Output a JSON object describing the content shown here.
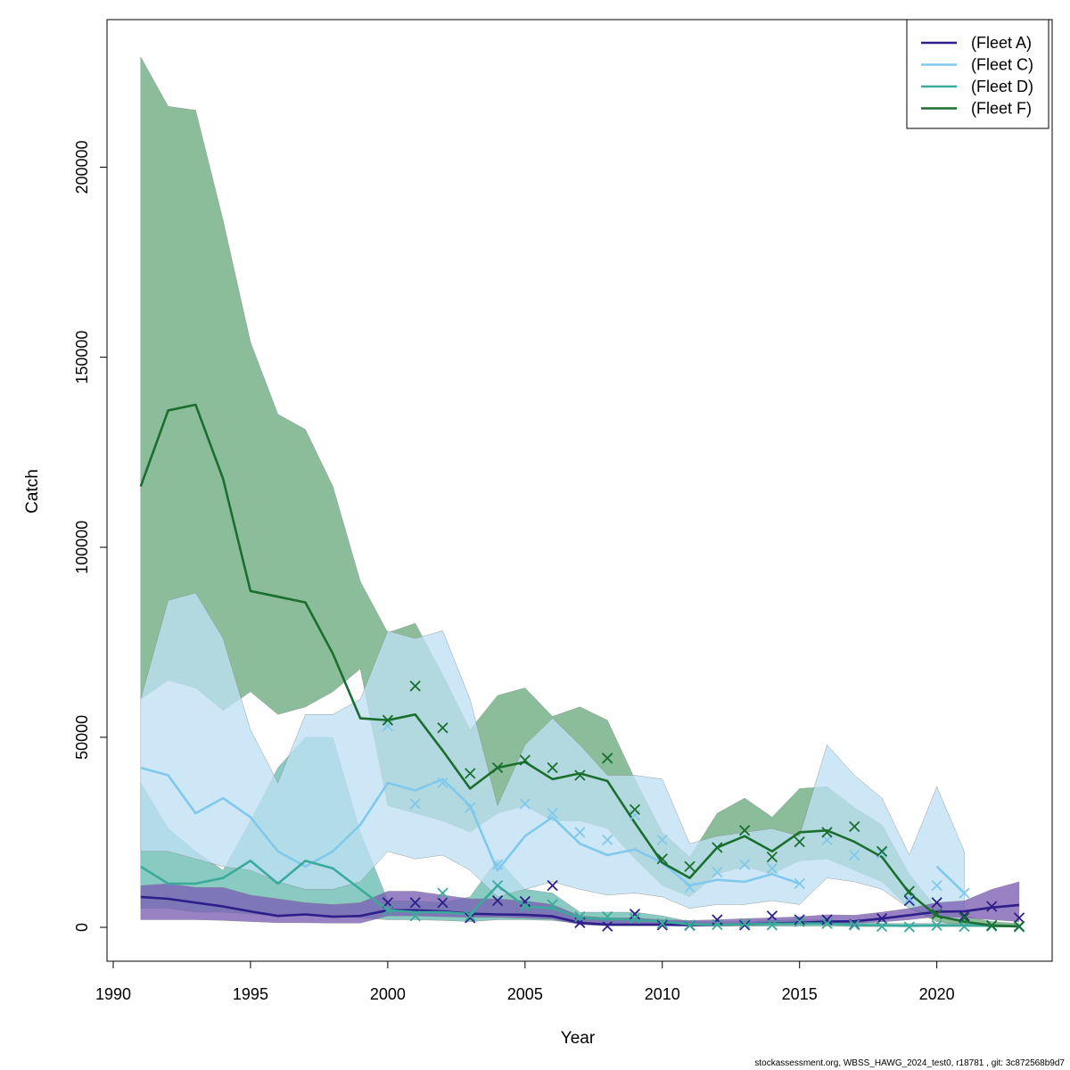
{
  "footer": "stockassessment.org, WBSS_HAWG_2024_test0, r18781 , git: 3c872568b9d7",
  "chart_data": {
    "type": "line",
    "xlabel": "Year",
    "ylabel": "Catch",
    "xlim": [
      1990,
      2023
    ],
    "ylim": [
      -10000,
      240000
    ],
    "xticks": [
      1990,
      1995,
      2000,
      2005,
      2010,
      2015,
      2020
    ],
    "yticks": [
      0,
      50000,
      100000,
      150000,
      200000
    ],
    "legend_position": "top-right",
    "grid": false,
    "x": [
      1991,
      1992,
      1993,
      1994,
      1995,
      1996,
      1997,
      1998,
      1999,
      2000,
      2001,
      2002,
      2003,
      2004,
      2005,
      2006,
      2007,
      2008,
      2009,
      2010,
      2011,
      2012,
      2013,
      2014,
      2015,
      2016,
      2017,
      2018,
      2019,
      2020,
      2021,
      2022,
      2023
    ],
    "series": [
      {
        "name": "(Fleet A)",
        "color": "#2d1e8a",
        "fill": "#7b5fb3",
        "estimate": [
          8000,
          7500,
          6500,
          5500,
          4200,
          3000,
          3400,
          2800,
          3000,
          4500,
          4500,
          4200,
          3600,
          3400,
          3300,
          2900,
          1200,
          700,
          700,
          700,
          600,
          700,
          800,
          1000,
          1200,
          1500,
          1600,
          2300,
          3200,
          4100,
          4200,
          5200,
          5900
        ],
        "lower": [
          2000,
          2000,
          2000,
          1800,
          1500,
          1200,
          1200,
          1100,
          1100,
          3000,
          3000,
          2800,
          2600,
          2600,
          2400,
          2100,
          700,
          400,
          400,
          400,
          300,
          400,
          500,
          600,
          700,
          900,
          1000,
          1400,
          2000,
          2800,
          2500,
          2000,
          1500
        ],
        "upper": [
          11000,
          11500,
          10500,
          10500,
          8500,
          7500,
          6500,
          6000,
          6500,
          9500,
          9500,
          8500,
          7500,
          7500,
          7000,
          6000,
          3000,
          2500,
          2500,
          2000,
          1800,
          2000,
          2300,
          2500,
          2800,
          3300,
          3200,
          4000,
          5000,
          6500,
          7000,
          10000,
          12000
        ],
        "observed": [
          null,
          null,
          null,
          null,
          null,
          null,
          null,
          null,
          null,
          6500,
          6500,
          6500,
          2500,
          7000,
          6800,
          11000,
          1200,
          300,
          3500,
          600,
          500,
          2000,
          600,
          3000,
          2000,
          2000,
          800,
          2300,
          7000,
          6500,
          3000,
          5500,
          2500
        ]
      },
      {
        "name": "(Fleet C)",
        "color": "#80c9ed",
        "fill": "#bfe0f3",
        "estimate": [
          42000,
          40000,
          30000,
          34000,
          29000,
          20000,
          16000,
          20000,
          27000,
          38000,
          36000,
          39000,
          32000,
          15000,
          24000,
          29000,
          22000,
          19000,
          20500,
          17000,
          11000,
          12500,
          12000,
          14000,
          11500,
          null,
          null,
          null,
          null,
          16000,
          9000,
          null,
          null
        ],
        "lower": [
          20000,
          20000,
          18000,
          16000,
          15000,
          12000,
          10000,
          10000,
          12000,
          20000,
          18000,
          19000,
          15000,
          8000,
          10000,
          12000,
          10000,
          8500,
          9000,
          8000,
          5000,
          6000,
          6000,
          7000,
          6000,
          13000,
          12000,
          10000,
          5000,
          3000,
          2000,
          null,
          null
        ],
        "upper": [
          60000,
          86000,
          88000,
          76000,
          52000,
          38000,
          56000,
          56000,
          60000,
          78000,
          76000,
          78000,
          60000,
          32000,
          48000,
          55000,
          48000,
          40000,
          40000,
          39000,
          22000,
          24000,
          25000,
          26000,
          24000,
          48000,
          40000,
          34000,
          19000,
          37000,
          20000,
          null,
          null
        ],
        "observed": [
          null,
          null,
          null,
          null,
          null,
          null,
          null,
          null,
          null,
          53000,
          32500,
          38000,
          31500,
          16500,
          32500,
          30000,
          25000,
          23000,
          29500,
          23000,
          10500,
          14500,
          16500,
          15500,
          11500,
          23000,
          19000,
          19500,
          7500,
          11000,
          9000,
          null,
          null
        ]
      },
      {
        "name": "(Fleet D)",
        "color": "#3aaa9a",
        "fill": "#68bcb2",
        "estimate": [
          16000,
          11500,
          11500,
          13000,
          17500,
          11500,
          17500,
          15500,
          10000,
          4500,
          4000,
          4000,
          3500,
          11000,
          5500,
          5000,
          2500,
          2200,
          2000,
          1500,
          800,
          700,
          800,
          900,
          1000,
          1000,
          600,
          500,
          400,
          500,
          500,
          400,
          300
        ],
        "lower": [
          5000,
          5000,
          4000,
          4000,
          3500,
          3000,
          3500,
          3000,
          2500,
          2000,
          2000,
          1800,
          1500,
          2000,
          2000,
          1800,
          1000,
          800,
          800,
          600,
          300,
          300,
          300,
          300,
          300,
          300,
          200,
          200,
          150,
          200,
          200,
          150,
          100
        ],
        "upper": [
          38000,
          26000,
          20000,
          15000,
          28000,
          42000,
          50000,
          50000,
          25000,
          7000,
          7000,
          6500,
          8000,
          18000,
          10000,
          9000,
          4000,
          4000,
          4000,
          3000,
          1500,
          1500,
          1500,
          1800,
          2000,
          2000,
          1500,
          1000,
          1000,
          1000,
          1000,
          800,
          600
        ],
        "observed": [
          null,
          null,
          null,
          null,
          null,
          null,
          null,
          null,
          null,
          4500,
          3000,
          9000,
          3000,
          11000,
          5500,
          6000,
          2800,
          2800,
          2300,
          1000,
          600,
          700,
          1000,
          600,
          1500,
          1000,
          600,
          200,
          100,
          500,
          200,
          300,
          100
        ]
      },
      {
        "name": "(Fleet F)",
        "color": "#1a6e2e",
        "fill": "#6aab7e",
        "estimate": [
          116000,
          136000,
          137500,
          118000,
          88500,
          87000,
          85500,
          72000,
          55000,
          54500,
          56000,
          46500,
          36500,
          42000,
          43500,
          39000,
          40500,
          38500,
          27500,
          17000,
          13000,
          21000,
          24000,
          20000,
          25000,
          25500,
          22500,
          18500,
          9000,
          3000,
          1500,
          500,
          200
        ],
        "lower": [
          60000,
          65000,
          63000,
          57000,
          62000,
          56000,
          58000,
          62000,
          68000,
          32000,
          30000,
          28000,
          25000,
          30000,
          32000,
          28000,
          28000,
          26000,
          18000,
          11000,
          8000,
          14000,
          16000,
          14000,
          17500,
          18000,
          15000,
          12000,
          5000,
          1500,
          500,
          100,
          50
        ],
        "upper": [
          229000,
          216000,
          215000,
          186000,
          154000,
          135000,
          131000,
          116000,
          91000,
          77500,
          80000,
          66500,
          52000,
          61000,
          63000,
          55500,
          58000,
          54500,
          39000,
          25000,
          18500,
          30000,
          34000,
          29000,
          36500,
          37000,
          31500,
          27000,
          14000,
          5000,
          3000,
          1500,
          1000
        ],
        "observed": [
          null,
          null,
          null,
          null,
          null,
          null,
          null,
          null,
          null,
          54500,
          63500,
          52500,
          40500,
          42000,
          44000,
          42000,
          40000,
          44500,
          31000,
          18000,
          16000,
          21000,
          25500,
          18500,
          22500,
          25000,
          26500,
          20000,
          9500,
          3500,
          2500,
          500,
          300
        ]
      }
    ]
  }
}
